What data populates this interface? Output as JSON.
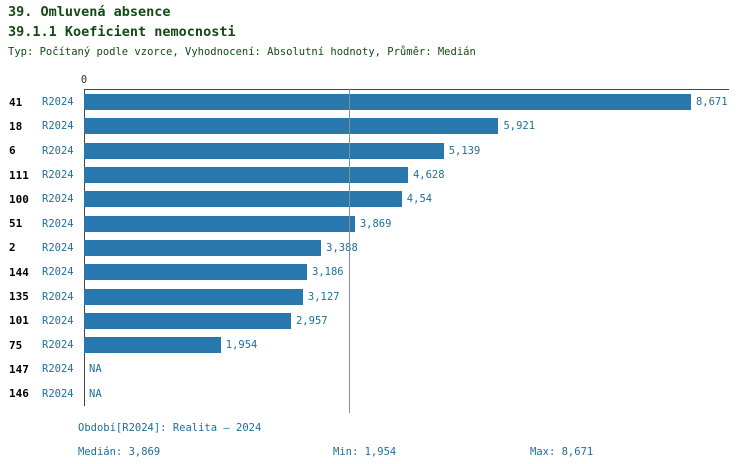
{
  "header": {
    "title": "39. Omluvená absence",
    "subtitle": "39.1.1 Koeficient nemocnosti",
    "meta": "Typ: Počítaný podle vzorce, Vyhodnocení: Absolutní hodnoty, Průměr: Medián"
  },
  "chart_data": {
    "type": "bar",
    "orientation": "horizontal",
    "axis_zero_label": "0",
    "series_label": "R2024",
    "categories": [
      "41",
      "18",
      "6",
      "111",
      "100",
      "51",
      "2",
      "144",
      "135",
      "101",
      "75",
      "147",
      "146"
    ],
    "values": [
      8.671,
      5.921,
      5.139,
      4.628,
      4.54,
      3.869,
      3.388,
      3.186,
      3.127,
      2.957,
      1.954,
      null,
      null
    ],
    "value_labels": [
      "8,671",
      "5,921",
      "5,139",
      "4,628",
      "4,54",
      "3,869",
      "3,388",
      "3,186",
      "3,127",
      "2,957",
      "1,954",
      "NA",
      "NA"
    ],
    "median": 3.869,
    "xlim": [
      0,
      9.4
    ],
    "bar_color": "#2878ae",
    "grid": "median-line-only",
    "legend_position": "none"
  },
  "footer": {
    "period": "Období[R2024]: Realita – 2024",
    "median": "Medián: 3,869",
    "min": "Min: 1,954",
    "max": "Max: 8,671"
  }
}
